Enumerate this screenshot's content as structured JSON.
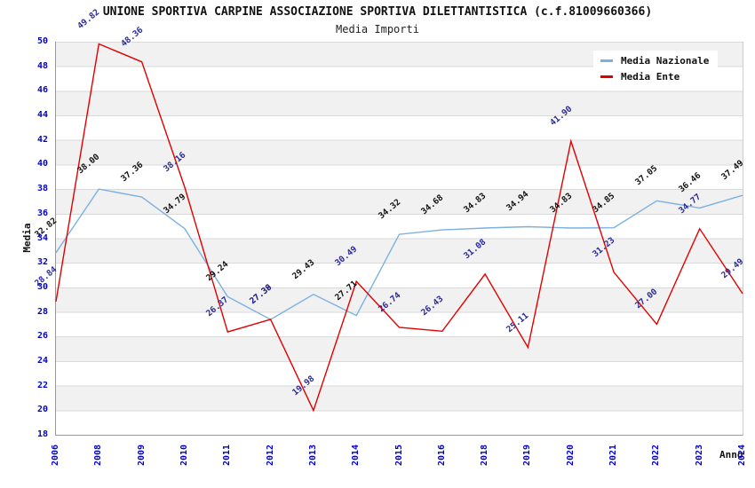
{
  "title": "UNIONE SPORTIVA CARPINE ASSOCIAZIONE SPORTIVA DILETTANTISTICA (c.f.81009660366)",
  "subtitle": "Media Importi",
  "axes": {
    "x_label": "Anno",
    "y_label": "Media",
    "y_ticks": [
      18,
      20,
      22,
      24,
      26,
      28,
      30,
      32,
      34,
      36,
      38,
      40,
      42,
      44,
      46,
      48,
      50
    ]
  },
  "colors": {
    "axis_tick_label": "#0000CC",
    "grid_band": "#F1F1F1",
    "grid_line": "#D9D9D9",
    "axis_line": "#999999"
  },
  "chart_data": {
    "type": "line",
    "title": "Media Importi",
    "xlabel": "Anno",
    "ylabel": "Media",
    "ylim": [
      18,
      50
    ],
    "y_tick_step": 2,
    "grid": "horizontal-bands",
    "legend_position": "top-right",
    "categories": [
      "2006",
      "2008",
      "2009",
      "2010",
      "2011",
      "2012",
      "2013",
      "2014",
      "2015",
      "2016",
      "2018",
      "2019",
      "2020",
      "2021",
      "2022",
      "2023",
      "2024"
    ],
    "series": [
      {
        "name": "Media Nazionale",
        "color": "#7CB0E0",
        "label_color": "#111111",
        "values": [
          32.82,
          38.0,
          37.36,
          34.79,
          29.24,
          27.38,
          29.43,
          27.71,
          34.32,
          34.68,
          34.83,
          34.94,
          34.83,
          34.85,
          37.05,
          36.46,
          37.49
        ]
      },
      {
        "name": "Media Ente",
        "color": "#E10000",
        "label_color": "#2A2A99",
        "values": [
          28.84,
          49.82,
          48.36,
          38.16,
          26.37,
          27.39,
          19.98,
          30.49,
          26.74,
          26.43,
          31.08,
          25.11,
          41.9,
          31.23,
          27.0,
          34.77,
          29.49
        ]
      }
    ]
  }
}
